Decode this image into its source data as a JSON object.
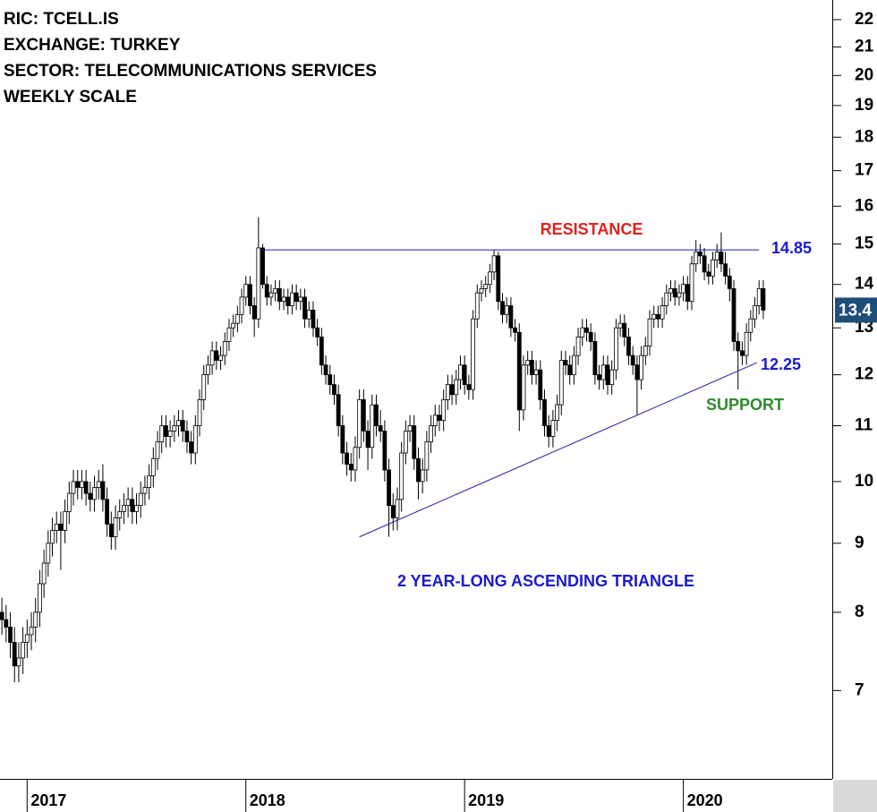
{
  "chart_data": {
    "type": "candlestick",
    "title_lines": [
      "RIC: TCELL.IS",
      "EXCHANGE: TURKEY",
      "SECTOR: TELECOMMUNICATIONS SERVICES",
      "WEEKLY SCALE"
    ],
    "log_scale": true,
    "ylim": [
      6.02,
      22.75
    ],
    "yticks": [
      7,
      8,
      9,
      10,
      11,
      12,
      13,
      14,
      15,
      16,
      17,
      18,
      19,
      20,
      21,
      22
    ],
    "xlim": [
      -7.45,
      190.4
    ],
    "xticks": [
      {
        "value": -1,
        "label": "2017"
      },
      {
        "value": 51,
        "label": "2018"
      },
      {
        "value": 103,
        "label": "2019"
      },
      {
        "value": 155,
        "label": "2020"
      }
    ],
    "x": [
      -7,
      -6,
      -5,
      -4,
      -3,
      -2,
      -1,
      0,
      1,
      2,
      3,
      4,
      5,
      6,
      7,
      8,
      9,
      10,
      11,
      12,
      13,
      14,
      15,
      16,
      17,
      18,
      19,
      20,
      21,
      22,
      23,
      24,
      25,
      26,
      27,
      28,
      29,
      30,
      31,
      32,
      33,
      34,
      35,
      36,
      37,
      38,
      39,
      40,
      41,
      42,
      43,
      44,
      45,
      46,
      47,
      48,
      49,
      50,
      51,
      52,
      53,
      54,
      55,
      56,
      57,
      58,
      59,
      60,
      61,
      62,
      63,
      64,
      65,
      66,
      67,
      68,
      69,
      70,
      71,
      72,
      73,
      74,
      75,
      76,
      77,
      78,
      79,
      80,
      81,
      82,
      83,
      84,
      85,
      86,
      87,
      88,
      89,
      90,
      91,
      92,
      93,
      94,
      95,
      96,
      97,
      98,
      99,
      100,
      101,
      102,
      103,
      104,
      105,
      106,
      107,
      108,
      109,
      110,
      111,
      112,
      113,
      114,
      115,
      116,
      117,
      118,
      119,
      120,
      121,
      122,
      123,
      124,
      125,
      126,
      127,
      128,
      129,
      130,
      131,
      132,
      133,
      134,
      135,
      136,
      137,
      138,
      139,
      140,
      141,
      142,
      143,
      144,
      145,
      146,
      147,
      148,
      149,
      150,
      151,
      152,
      153,
      154,
      155,
      156,
      157,
      158,
      159,
      160,
      161,
      162,
      163,
      164,
      165,
      166,
      167,
      168,
      169,
      170,
      171,
      172,
      173,
      174
    ],
    "open": [
      8.0,
      7.9,
      7.8,
      7.6,
      7.3,
      7.4,
      7.6,
      7.7,
      7.8,
      8.0,
      8.4,
      8.7,
      9.0,
      9.2,
      9.3,
      9.2,
      9.5,
      9.8,
      10.0,
      9.9,
      10.0,
      9.8,
      9.7,
      9.9,
      10.0,
      9.7,
      9.3,
      9.1,
      9.4,
      9.5,
      9.6,
      9.7,
      9.5,
      9.6,
      9.8,
      9.9,
      10.1,
      10.4,
      10.7,
      11.0,
      10.8,
      10.9,
      11.0,
      11.1,
      10.9,
      10.7,
      10.5,
      11.0,
      11.5,
      12.0,
      12.2,
      12.5,
      12.3,
      12.4,
      12.7,
      13.0,
      13.1,
      13.3,
      13.7,
      14.0,
      13.5,
      13.2,
      14.9,
      14.0,
      13.7,
      13.8,
      13.9,
      13.6,
      13.7,
      13.5,
      13.8,
      13.6,
      13.7,
      13.2,
      13.4,
      13.0,
      12.8,
      12.2,
      12.0,
      11.8,
      11.6,
      11.0,
      10.5,
      10.3,
      10.2,
      10.6,
      11.5,
      10.9,
      10.6,
      11.4,
      11.0,
      10.9,
      10.2,
      9.6,
      9.4,
      9.7,
      10.5,
      10.9,
      11.0,
      10.4,
      10.0,
      10.2,
      10.7,
      11.0,
      11.2,
      11.1,
      11.5,
      11.8,
      11.6,
      11.9,
      12.2,
      11.8,
      11.7,
      13.2,
      13.8,
      13.9,
      14.0,
      14.3,
      14.7,
      13.6,
      13.3,
      13.5,
      13.0,
      12.9,
      11.3,
      12.2,
      12.3,
      12.0,
      12.1,
      11.5,
      11.0,
      10.8,
      11.1,
      11.4,
      12.3,
      12.2,
      12.0,
      12.4,
      12.8,
      13.0,
      12.9,
      12.7,
      12.0,
      11.9,
      12.2,
      11.8,
      12.1,
      13.0,
      13.1,
      12.8,
      12.4,
      12.2,
      11.9,
      12.4,
      12.6,
      13.2,
      13.3,
      13.2,
      13.5,
      13.8,
      13.9,
      13.7,
      13.8,
      14.0,
      13.6,
      14.5,
      14.8,
      14.7,
      14.3,
      14.2,
      14.6,
      14.8,
      14.5,
      14.2,
      13.9,
      12.7,
      12.5,
      12.4,
      12.9,
      13.2,
      13.5,
      13.9
    ],
    "high": [
      8.2,
      8.1,
      8.0,
      7.8,
      7.6,
      7.8,
      7.9,
      8.0,
      8.2,
      8.6,
      8.9,
      9.2,
      9.4,
      9.5,
      9.5,
      9.7,
      10.0,
      10.2,
      10.2,
      10.2,
      10.2,
      10.0,
      10.1,
      10.2,
      10.3,
      9.9,
      9.5,
      9.6,
      9.7,
      9.8,
      9.9,
      9.9,
      9.8,
      10.0,
      10.1,
      10.3,
      10.6,
      10.9,
      11.2,
      11.2,
      11.1,
      11.2,
      11.3,
      11.3,
      11.1,
      10.9,
      11.2,
      11.7,
      12.2,
      12.4,
      12.7,
      12.7,
      12.6,
      12.9,
      13.2,
      13.3,
      13.5,
      13.9,
      14.2,
      14.2,
      13.7,
      15.7,
      15.0,
      14.2,
      14.0,
      14.1,
      14.1,
      13.9,
      13.9,
      14.0,
      14.0,
      13.9,
      13.9,
      13.6,
      13.6,
      13.2,
      13.0,
      12.4,
      12.2,
      12.0,
      11.8,
      11.2,
      10.7,
      10.5,
      10.8,
      11.7,
      11.7,
      11.1,
      11.6,
      11.6,
      11.3,
      11.1,
      10.4,
      9.8,
      9.9,
      10.7,
      11.1,
      11.2,
      11.2,
      10.6,
      10.4,
      10.9,
      11.2,
      11.4,
      11.4,
      11.7,
      12.0,
      12.0,
      12.1,
      12.4,
      12.4,
      12.0,
      13.4,
      14.0,
      14.1,
      14.2,
      14.5,
      14.85,
      14.8,
      13.8,
      13.7,
      13.7,
      13.2,
      13.1,
      12.4,
      12.5,
      12.5,
      12.3,
      12.3,
      11.7,
      11.2,
      11.3,
      11.6,
      12.5,
      12.5,
      12.4,
      12.6,
      13.0,
      13.2,
      13.2,
      13.1,
      12.9,
      12.2,
      12.4,
      12.4,
      12.3,
      13.2,
      13.3,
      13.3,
      13.0,
      12.6,
      12.4,
      12.6,
      12.8,
      13.4,
      13.5,
      13.5,
      13.7,
      14.0,
      14.1,
      14.1,
      14.0,
      14.2,
      14.2,
      14.7,
      15.1,
      15.0,
      14.9,
      14.5,
      14.8,
      15.0,
      15.3,
      14.8,
      14.4,
      14.1,
      12.9,
      12.7,
      13.1,
      13.4,
      13.7,
      14.1,
      14.1
    ],
    "low": [
      7.7,
      7.6,
      7.4,
      7.1,
      7.1,
      7.2,
      7.4,
      7.5,
      7.6,
      7.8,
      8.2,
      8.5,
      8.8,
      9.0,
      8.6,
      9.0,
      9.3,
      9.6,
      9.7,
      9.7,
      9.6,
      9.5,
      9.5,
      9.7,
      9.5,
      9.1,
      8.9,
      8.9,
      9.2,
      9.3,
      9.4,
      9.3,
      9.3,
      9.4,
      9.6,
      9.7,
      9.9,
      10.2,
      10.5,
      10.6,
      10.6,
      10.7,
      10.8,
      10.7,
      10.5,
      10.3,
      10.3,
      10.8,
      11.3,
      11.8,
      12.0,
      12.1,
      12.1,
      12.2,
      12.5,
      12.8,
      12.9,
      13.1,
      13.5,
      13.3,
      12.8,
      13.0,
      13.9,
      13.5,
      13.5,
      13.6,
      13.4,
      13.4,
      13.3,
      13.3,
      13.4,
      13.4,
      13.0,
      13.0,
      12.8,
      12.6,
      12.0,
      11.8,
      11.6,
      11.4,
      10.8,
      10.3,
      10.1,
      10.0,
      10.0,
      10.4,
      10.7,
      10.2,
      10.4,
      10.8,
      10.7,
      10.0,
      9.1,
      9.2,
      9.2,
      9.5,
      10.3,
      10.7,
      10.2,
      9.7,
      9.8,
      10.0,
      10.5,
      10.8,
      10.9,
      10.9,
      11.3,
      11.4,
      11.4,
      11.7,
      11.6,
      11.5,
      11.5,
      13.0,
      13.6,
      13.7,
      13.8,
      14.1,
      13.4,
      13.1,
      13.1,
      12.8,
      12.7,
      10.9,
      11.1,
      12.0,
      11.8,
      11.8,
      11.3,
      10.8,
      10.6,
      10.6,
      10.9,
      11.2,
      12.0,
      11.8,
      11.8,
      12.2,
      12.6,
      12.7,
      12.5,
      11.8,
      11.7,
      11.7,
      11.6,
      11.6,
      11.9,
      12.8,
      12.6,
      12.2,
      12.0,
      11.2,
      11.7,
      12.2,
      12.4,
      13.0,
      13.0,
      13.0,
      13.3,
      13.6,
      13.5,
      13.5,
      13.6,
      13.4,
      13.4,
      14.3,
      14.5,
      14.1,
      14.0,
      14.0,
      14.4,
      14.3,
      14.0,
      13.6,
      12.5,
      11.7,
      12.2,
      12.2,
      12.7,
      13.0,
      13.3,
      13.2
    ],
    "close": [
      7.9,
      7.8,
      7.6,
      7.3,
      7.4,
      7.6,
      7.7,
      7.8,
      8.0,
      8.4,
      8.7,
      9.0,
      9.2,
      9.3,
      9.2,
      9.5,
      9.8,
      10.0,
      9.9,
      10.0,
      9.8,
      9.7,
      9.9,
      10.0,
      9.7,
      9.3,
      9.1,
      9.4,
      9.5,
      9.6,
      9.7,
      9.5,
      9.6,
      9.8,
      9.9,
      10.1,
      10.4,
      10.7,
      11.0,
      10.8,
      10.9,
      11.0,
      11.1,
      10.9,
      10.7,
      10.5,
      11.0,
      11.5,
      12.0,
      12.2,
      12.5,
      12.3,
      12.4,
      12.7,
      13.0,
      13.1,
      13.3,
      13.7,
      14.0,
      13.5,
      13.2,
      14.9,
      14.0,
      13.7,
      13.8,
      13.9,
      13.6,
      13.7,
      13.5,
      13.8,
      13.6,
      13.7,
      13.2,
      13.4,
      13.0,
      12.8,
      12.2,
      12.0,
      11.8,
      11.6,
      11.0,
      10.5,
      10.3,
      10.2,
      10.6,
      11.5,
      10.9,
      10.6,
      11.4,
      11.0,
      10.9,
      10.2,
      9.6,
      9.4,
      9.7,
      10.5,
      10.9,
      11.0,
      10.4,
      10.0,
      10.2,
      10.7,
      11.0,
      11.2,
      11.1,
      11.5,
      11.8,
      11.6,
      11.9,
      12.2,
      11.8,
      11.7,
      13.2,
      13.8,
      13.9,
      14.0,
      14.3,
      14.7,
      13.6,
      13.3,
      13.5,
      13.0,
      12.9,
      11.3,
      12.2,
      12.3,
      12.0,
      12.1,
      11.5,
      11.0,
      10.8,
      11.1,
      11.4,
      12.3,
      12.2,
      12.0,
      12.4,
      12.8,
      13.0,
      12.9,
      12.7,
      12.0,
      11.9,
      12.2,
      11.8,
      12.1,
      13.0,
      13.1,
      12.8,
      12.4,
      12.2,
      11.9,
      12.4,
      12.6,
      13.2,
      13.3,
      13.2,
      13.5,
      13.8,
      13.9,
      13.7,
      13.8,
      14.0,
      13.6,
      14.5,
      14.8,
      14.7,
      14.3,
      14.2,
      14.6,
      14.8,
      14.5,
      14.2,
      13.9,
      12.7,
      12.5,
      12.4,
      12.9,
      13.2,
      13.5,
      13.9,
      13.4
    ],
    "up_color": "#ffffff",
    "down_color": "#000000",
    "resistance": {
      "label": "RESISTANCE",
      "value": 14.85,
      "x": [
        54.5,
        173
      ],
      "color": "#1c1c9c",
      "label_color": "#e0201b",
      "value_color": "#1a1acd"
    },
    "support": {
      "label": "SUPPORT",
      "value": 12.25,
      "start": [
        78,
        9.1
      ],
      "end_x": 172.5,
      "color": "#1c1c9c",
      "label_color": "#2e8b2e",
      "value_color": "#1a1acd"
    },
    "pattern_label": "2 YEAR-LONG ASCENDING TRIANGLE",
    "pattern_color": "#1a1acd",
    "last_price": 13.4,
    "last_price_color": "#1f4e79"
  }
}
